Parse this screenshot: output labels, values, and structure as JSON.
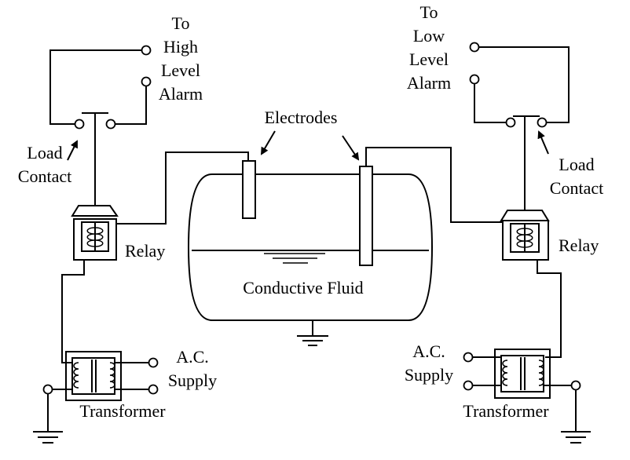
{
  "diagram": {
    "title_hidden": false,
    "left": {
      "alarm_label": [
        "To",
        "High",
        "Level",
        "Alarm"
      ],
      "load_contact_label": [
        "Load",
        "Contact"
      ],
      "relay_label": "Relay",
      "supply_label": [
        "A.C.",
        "Supply"
      ],
      "transformer_label": "Transformer"
    },
    "right": {
      "alarm_label": [
        "To",
        "Low",
        "Level",
        "Alarm"
      ],
      "load_contact_label": [
        "Load",
        "Contact"
      ],
      "relay_label": "Relay",
      "supply_label": [
        "A.C.",
        "Supply"
      ],
      "transformer_label": "Transformer"
    },
    "tank": {
      "electrodes_label": "Electrodes",
      "fluid_label": "Conductive Fluid"
    }
  }
}
